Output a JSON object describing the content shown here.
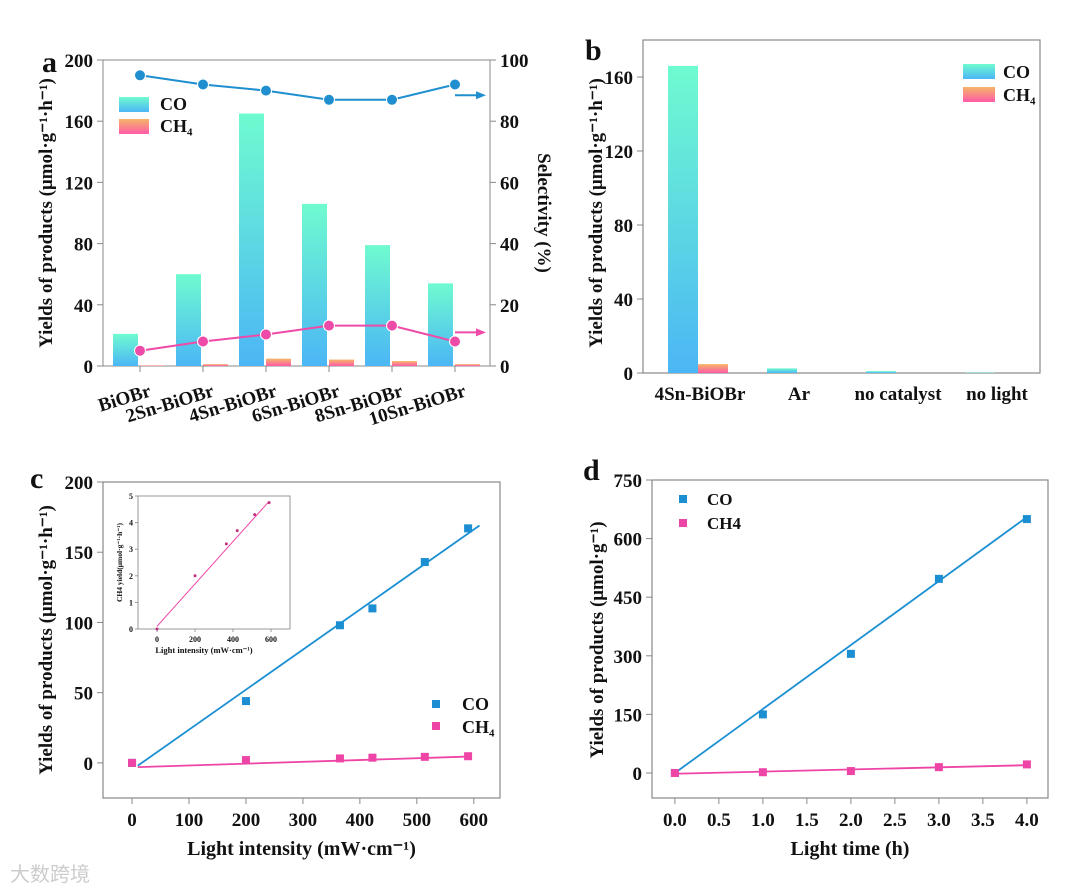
{
  "watermark": "大数跨境",
  "chart_data": [
    {
      "panel": "a",
      "type": "bar+line",
      "categories": [
        "BiOBr",
        "2Sn-BiOBr",
        "4Sn-BiOBr",
        "6Sn-BiOBr",
        "8Sn-BiOBr",
        "10Sn-BiOBr"
      ],
      "series": [
        {
          "name": "CO",
          "axis": "left",
          "values": [
            21,
            60,
            165,
            106,
            79,
            54
          ]
        },
        {
          "name": "CH4",
          "axis": "left",
          "values": [
            0.4,
            1.2,
            4.8,
            4.2,
            3.2,
            1.2
          ]
        },
        {
          "name": "CO selectivity",
          "axis": "right",
          "values": [
            95,
            92,
            90,
            87,
            87,
            92
          ]
        },
        {
          "name": "CH4 selectivity",
          "axis": "right",
          "values": [
            5,
            8,
            10.3,
            13.2,
            13.2,
            8
          ]
        }
      ],
      "ylabel": "Yields of products  (μmol·g⁻¹·h⁻¹)",
      "ylim": [
        0,
        200
      ],
      "yticks": [
        0,
        40,
        80,
        120,
        160,
        200
      ],
      "y2label": "Selectivity (%)",
      "y2lim": [
        0,
        100
      ],
      "y2ticks": [
        0,
        20,
        40,
        60,
        80,
        100
      ],
      "legend": [
        "CO",
        "CH₄"
      ],
      "legend_position": "top-left",
      "colors": {
        "co_top": "#6ffbd0",
        "co_bottom": "#4bb6f5",
        "ch4_top": "#f5b567",
        "ch4_bottom": "#ff5aa8",
        "sel_co": "#1f8fd0",
        "sel_ch4": "#ee4aa8"
      }
    },
    {
      "panel": "b",
      "type": "bar",
      "categories": [
        "4Sn-BiOBr",
        "Ar",
        "no catalyst",
        "no light"
      ],
      "series": [
        {
          "name": "CO",
          "values": [
            166,
            2.5,
            1.0,
            0.2
          ]
        },
        {
          "name": "CH4",
          "values": [
            4.8,
            0,
            0,
            0
          ]
        }
      ],
      "ylabel": "Yields of products  (μmol·g⁻¹·h⁻¹)",
      "ylim": [
        0,
        180
      ],
      "yticks": [
        0,
        40,
        80,
        120,
        160
      ],
      "legend": [
        "CO",
        "CH₄"
      ],
      "legend_position": "top-right"
    },
    {
      "panel": "c",
      "type": "scatter",
      "x": [
        0,
        200,
        365,
        422,
        514,
        590
      ],
      "series": [
        {
          "name": "CO",
          "values": [
            0,
            44,
            98,
            110,
            143,
            167
          ],
          "fit": [
            [
              10,
              -2
            ],
            [
              610,
              169
            ]
          ]
        },
        {
          "name": "CH4",
          "values": [
            0,
            2,
            3.2,
            3.7,
            4.3,
            4.75
          ],
          "fit": [
            [
              10,
              -3
            ],
            [
              590,
              4.5
            ]
          ]
        }
      ],
      "xlabel": "Light intensity (mW·cm⁻¹)",
      "xlim": [
        -51,
        646
      ],
      "xticks": [
        0,
        100,
        200,
        300,
        400,
        500,
        600
      ],
      "ylabel": "Yields of products  (μmol·g⁻¹·h⁻¹)",
      "ylim": [
        -25,
        200
      ],
      "yticks": [
        0,
        50,
        100,
        150,
        200
      ],
      "legend": [
        "CO",
        "CH₄"
      ],
      "legend_position": "bottom-right",
      "inset": {
        "x": [
          0,
          200,
          365,
          422,
          514,
          590
        ],
        "values": [
          0,
          2,
          3.2,
          3.7,
          4.3,
          4.75
        ],
        "fit": [
          [
            0,
            0.1
          ],
          [
            590,
            4.8
          ]
        ],
        "xlabel": "Light intensity (mW·cm⁻¹)",
        "ylabel": "CH4 yield(μmol·g⁻¹·h⁻¹)",
        "xlim": [
          -100,
          700
        ],
        "ylim": [
          0,
          5
        ],
        "xticks": [
          0,
          200,
          400,
          600
        ],
        "yticks": [
          0,
          1,
          2,
          3,
          4,
          5
        ]
      }
    },
    {
      "panel": "d",
      "type": "scatter",
      "x": [
        0,
        1,
        2,
        3,
        4
      ],
      "series": [
        {
          "name": "CO",
          "values": [
            0,
            150,
            305,
            497,
            650
          ],
          "fit": [
            [
              0,
              0
            ],
            [
              4,
              655
            ]
          ]
        },
        {
          "name": "CH4",
          "values": [
            0,
            2,
            5,
            15,
            22
          ],
          "fit": [
            [
              0,
              -2
            ],
            [
              4,
              20
            ]
          ]
        }
      ],
      "xlabel": "Light time (h)",
      "xlim": [
        -0.26,
        4.24
      ],
      "xticks": [
        "0.0",
        "0.5",
        "1.0",
        "1.5",
        "2.0",
        "2.5",
        "3.0",
        "3.5",
        "4.0"
      ],
      "ylabel": "Yields of products  (μmol·g⁻¹)",
      "ylim": [
        -64,
        750
      ],
      "yticks": [
        0,
        150,
        300,
        450,
        600,
        750
      ],
      "legend": [
        "CO",
        "CH4"
      ],
      "legend_position": "top-left"
    }
  ],
  "panel_labels": [
    "a",
    "b",
    "c",
    "d"
  ]
}
